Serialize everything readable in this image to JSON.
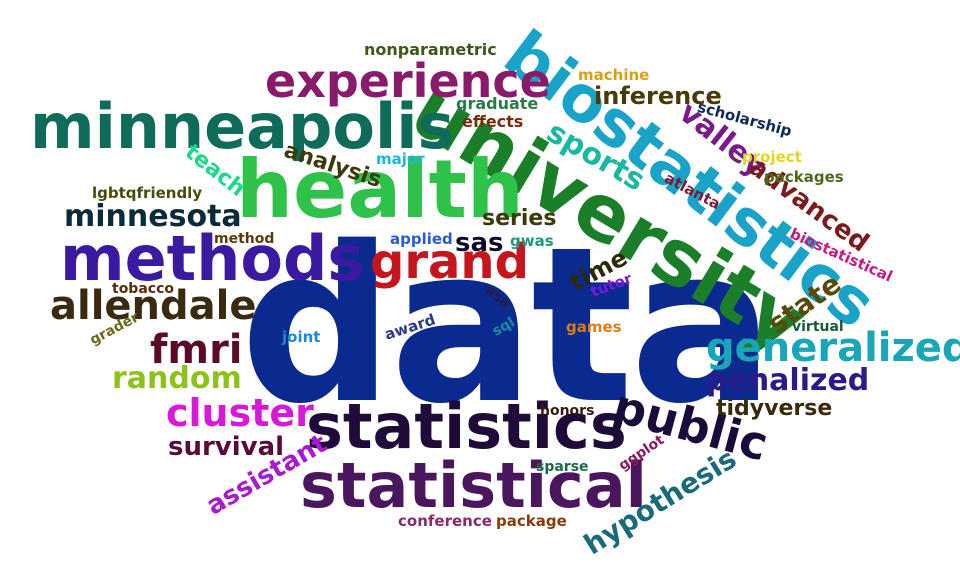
{
  "words": [
    {
      "text": "data",
      "color": "#0a2a8f"
    },
    {
      "text": "university",
      "color": "#1b7f2a"
    },
    {
      "text": "biostatistics",
      "color": "#1aa3c8"
    },
    {
      "text": "health",
      "color": "#2fc24a"
    },
    {
      "text": "minneapolis",
      "color": "#0f6b5a"
    },
    {
      "text": "methods",
      "color": "#3a1aa0"
    },
    {
      "text": "statistics",
      "color": "#1f0b3a"
    },
    {
      "text": "statistical",
      "color": "#4a175e"
    },
    {
      "text": "experience",
      "color": "#8a1a6a"
    },
    {
      "text": "grand",
      "color": "#c4161c"
    },
    {
      "text": "public",
      "color": "#1a0b3a"
    },
    {
      "text": "generalized",
      "color": "#1aa6b8"
    },
    {
      "text": "allendale",
      "color": "#3a2a10"
    },
    {
      "text": "cluster",
      "color": "#d81ad8"
    },
    {
      "text": "fmri",
      "color": "#5a0b2a"
    },
    {
      "text": "minnesota",
      "color": "#0b2a3a"
    },
    {
      "text": "random",
      "color": "#8cc21a"
    },
    {
      "text": "penalized",
      "color": "#2a1a8a"
    },
    {
      "text": "sports",
      "color": "#1ab8a0"
    },
    {
      "text": "valley",
      "color": "#7a1a8a"
    },
    {
      "text": "advanced",
      "color": "#7a1a1a"
    },
    {
      "text": "inference",
      "color": "#4a3a0a"
    },
    {
      "text": "state",
      "color": "#5a4a0a"
    },
    {
      "text": "hypothesis",
      "color": "#1a6b7a"
    },
    {
      "text": "assistant",
      "color": "#a81ad0"
    },
    {
      "text": "survival",
      "color": "#5a0a3a"
    },
    {
      "text": "tidyverse",
      "color": "#3a2a0a"
    },
    {
      "text": "analysis",
      "color": "#3a3a0a"
    },
    {
      "text": "teach",
      "color": "#1ad88a"
    },
    {
      "text": "sas",
      "color": "#0a0a2a"
    },
    {
      "text": "series",
      "color": "#3a3a0a"
    },
    {
      "text": "time",
      "color": "#2a2a0a"
    },
    {
      "text": "nonparametric",
      "color": "#3a5a1a"
    },
    {
      "text": "machine",
      "color": "#d8a01a"
    },
    {
      "text": "graduate",
      "color": "#2a7a4a"
    },
    {
      "text": "effects",
      "color": "#7a2a0a"
    },
    {
      "text": "scholarship",
      "color": "#0a2a5a"
    },
    {
      "text": "major",
      "color": "#1ab8d8"
    },
    {
      "text": "project",
      "color": "#e0d81a"
    },
    {
      "text": "packages",
      "color": "#4a6a1a"
    },
    {
      "text": "lgbtqfriendly",
      "color": "#4a4a0a"
    },
    {
      "text": "atlanta",
      "color": "#7a1a3a"
    },
    {
      "text": "method",
      "color": "#5a3a0a"
    },
    {
      "text": "applied",
      "color": "#2a5ad8"
    },
    {
      "text": "gwas",
      "color": "#1a9a7a"
    },
    {
      "text": "biostatistical",
      "color": "#c81a7a"
    },
    {
      "text": "tobacco",
      "color": "#5a2a0a"
    },
    {
      "text": "asa",
      "color": "#2a1a4a"
    },
    {
      "text": "tutor",
      "color": "#7a1ad8"
    },
    {
      "text": "grader",
      "color": "#6a6a1a"
    },
    {
      "text": "joint",
      "color": "#1a8ad8"
    },
    {
      "text": "award",
      "color": "#2a3a8a"
    },
    {
      "text": "sql",
      "color": "#1a8a9a"
    },
    {
      "text": "games",
      "color": "#e07a1a"
    },
    {
      "text": "virtual",
      "color": "#1a5a3a"
    },
    {
      "text": "honors",
      "color": "#3a1a0a"
    },
    {
      "text": "ggplot",
      "color": "#8a1a5a"
    },
    {
      "text": "sparse",
      "color": "#1a6a4a"
    },
    {
      "text": "conference",
      "color": "#8a2a6a"
    },
    {
      "text": "package",
      "color": "#8a3a0a"
    }
  ]
}
